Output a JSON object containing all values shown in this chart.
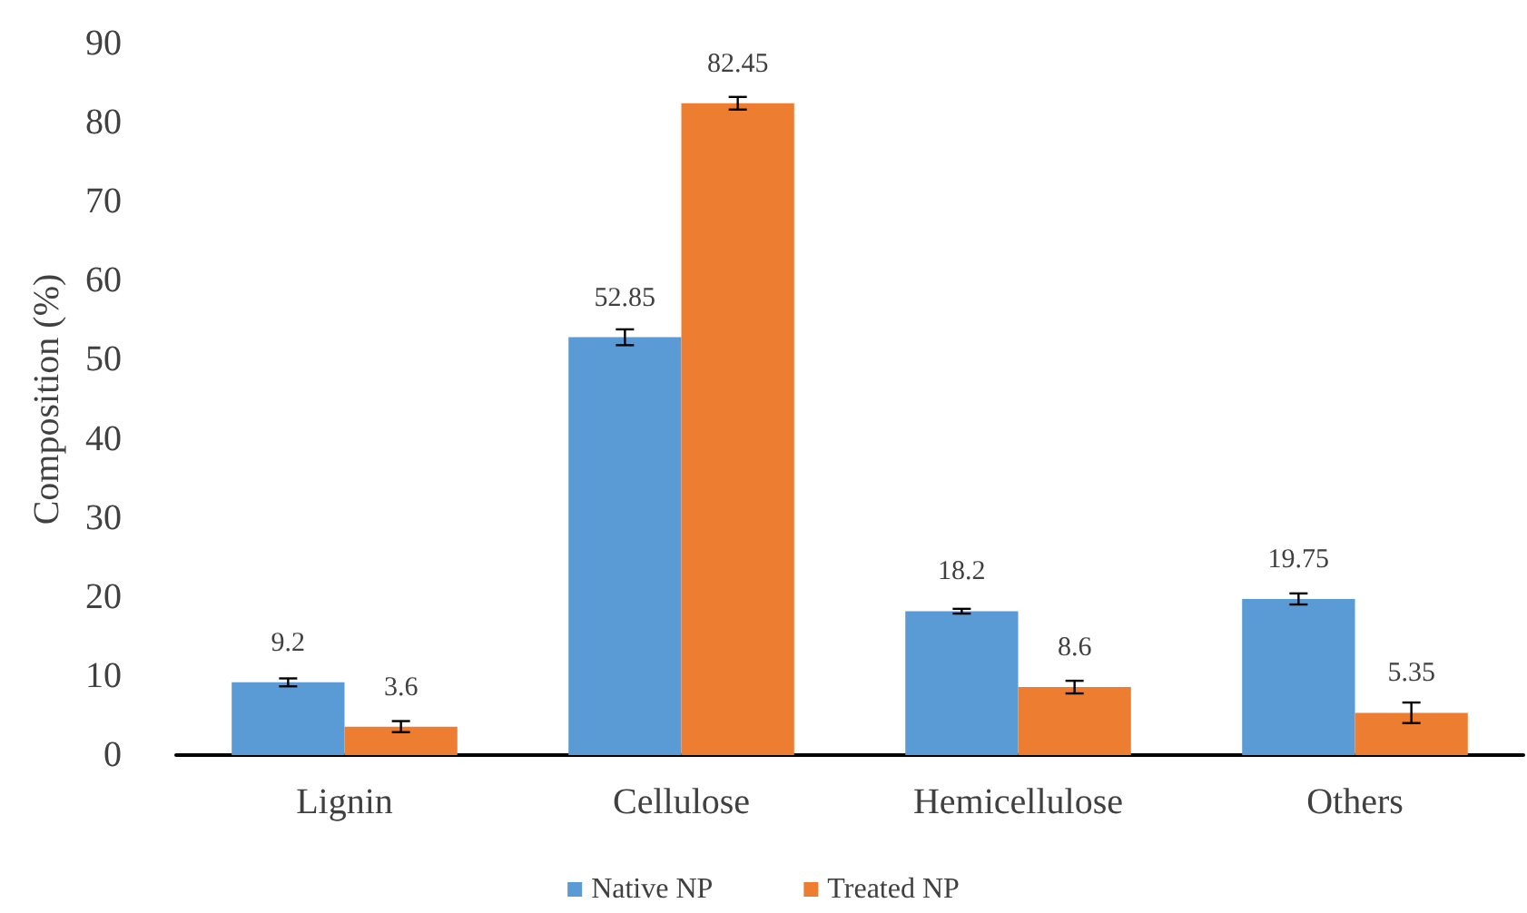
{
  "chart_data": {
    "type": "bar",
    "ylabel": "Composition (%)",
    "categories": [
      "Lignin",
      "Cellulose",
      "Hemicellulose",
      "Others"
    ],
    "series": [
      {
        "name": "Native NP",
        "color": "#5b9bd5",
        "values": [
          9.2,
          52.85,
          18.2,
          19.75
        ],
        "errors": [
          0.5,
          1,
          0.3,
          0.7
        ]
      },
      {
        "name": "Treated NP",
        "color": "#ed7d31",
        "values": [
          3.6,
          82.45,
          8.6,
          5.35
        ],
        "errors": [
          0.7,
          0.8,
          0.8,
          1.3
        ]
      }
    ],
    "ylim": [
      0,
      90
    ],
    "yticks": [
      0,
      10,
      20,
      30,
      40,
      50,
      60,
      70,
      80,
      90
    ],
    "data_labels": true,
    "grid": false,
    "legend": "bottom"
  }
}
